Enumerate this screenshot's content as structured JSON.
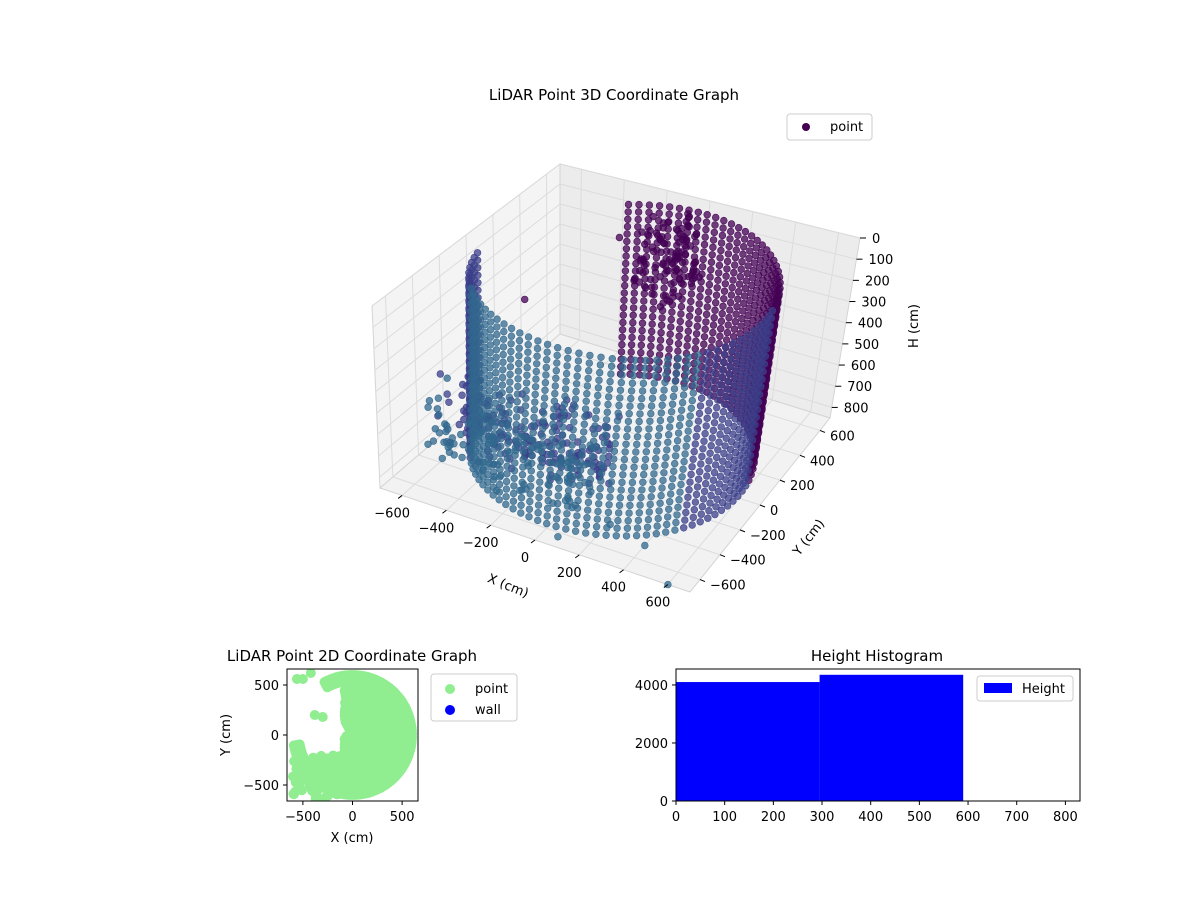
{
  "figure": {
    "background": "#ffffff"
  },
  "chart_data": [
    {
      "type": "scatter",
      "subtype": "3d",
      "title": "LiDAR Point 3D Coordinate Graph",
      "xlabel": "X (cm)",
      "ylabel": "Y (cm)",
      "zlabel": "H (cm)",
      "xlim": [
        -700,
        700
      ],
      "ylim": [
        -700,
        700
      ],
      "zlim": [
        850,
        0
      ],
      "x_ticks": [
        -600,
        -400,
        -200,
        0,
        200,
        400,
        600
      ],
      "x_tick_labels": [
        "−600",
        "−400",
        "−200",
        "0",
        "200",
        "400",
        "600"
      ],
      "y_ticks": [
        -600,
        -400,
        -200,
        0,
        200,
        400,
        600
      ],
      "y_tick_labels": [
        "−600",
        "−400",
        "−200",
        "0",
        "200",
        "400",
        "600"
      ],
      "z_ticks": [
        0,
        100,
        200,
        300,
        400,
        500,
        600,
        700,
        800
      ],
      "z_tick_labels": [
        "0",
        "100",
        "200",
        "300",
        "400",
        "500",
        "600",
        "700",
        "800"
      ],
      "legend": [
        "point"
      ],
      "legend_position": "top-right",
      "grid": true,
      "colors": {
        "point_dark": "#440154",
        "point_mid": "#3b3f8a",
        "point_light": "#31688e"
      },
      "series": [
        {
          "name": "point",
          "description": "ring of points at radius ~600 cm spanning heights 0-850 cm plus scattered near-field points",
          "ring_radius": 600,
          "ring_angle_range_deg": [
            -170,
            120
          ],
          "height_range": [
            0,
            850
          ],
          "sample_outliers": [
            [
              -650,
              -300,
              500
            ],
            [
              -500,
              100,
              300
            ],
            [
              -300,
              500,
              150
            ],
            [
              -450,
              -600,
              300
            ],
            [
              300,
              -650,
              700
            ],
            [
              100,
              -700,
              800
            ],
            [
              -100,
              -600,
              700
            ],
            [
              400,
              -500,
              850
            ],
            [
              600,
              -700,
              850
            ]
          ]
        }
      ]
    },
    {
      "type": "scatter",
      "title": "LiDAR Point 2D Coordinate Graph",
      "xlabel": "X (cm)",
      "ylabel": "Y (cm)",
      "xlim": [
        -660,
        660
      ],
      "ylim": [
        -660,
        660
      ],
      "x_ticks": [
        -500,
        0,
        500
      ],
      "x_tick_labels": [
        "−500",
        "0",
        "500"
      ],
      "y_ticks": [
        -500,
        0,
        500
      ],
      "y_tick_labels": [
        "−500",
        "0",
        "500"
      ],
      "legend": [
        "point",
        "wall"
      ],
      "legend_position": "outside-right",
      "colors": {
        "point": "#90ee90",
        "wall": "#0000ff"
      },
      "series": [
        {
          "name": "point",
          "description": "filled half disc of radius ~600 cm on right side plus near-field clusters"
        },
        {
          "name": "wall",
          "description": "no visible points"
        }
      ]
    },
    {
      "type": "bar",
      "subtype": "histogram",
      "title": "Height Histogram",
      "xlabel": "",
      "ylabel": "",
      "xlim": [
        0,
        830
      ],
      "ylim": [
        0,
        4550
      ],
      "x_ticks": [
        0,
        100,
        200,
        300,
        400,
        500,
        600,
        700,
        800
      ],
      "x_tick_labels": [
        "0",
        "100",
        "200",
        "300",
        "400",
        "500",
        "600",
        "700",
        "800"
      ],
      "y_ticks": [
        0,
        2000,
        4000
      ],
      "y_tick_labels": [
        "0",
        "2000",
        "4000"
      ],
      "legend": [
        "Height"
      ],
      "legend_position": "top-right",
      "colors": {
        "bar": "#0000ff"
      },
      "series": [
        {
          "name": "Height",
          "bins": [
            [
              0,
              295,
              4100
            ],
            [
              295,
              590,
              4350
            ]
          ]
        }
      ]
    }
  ]
}
